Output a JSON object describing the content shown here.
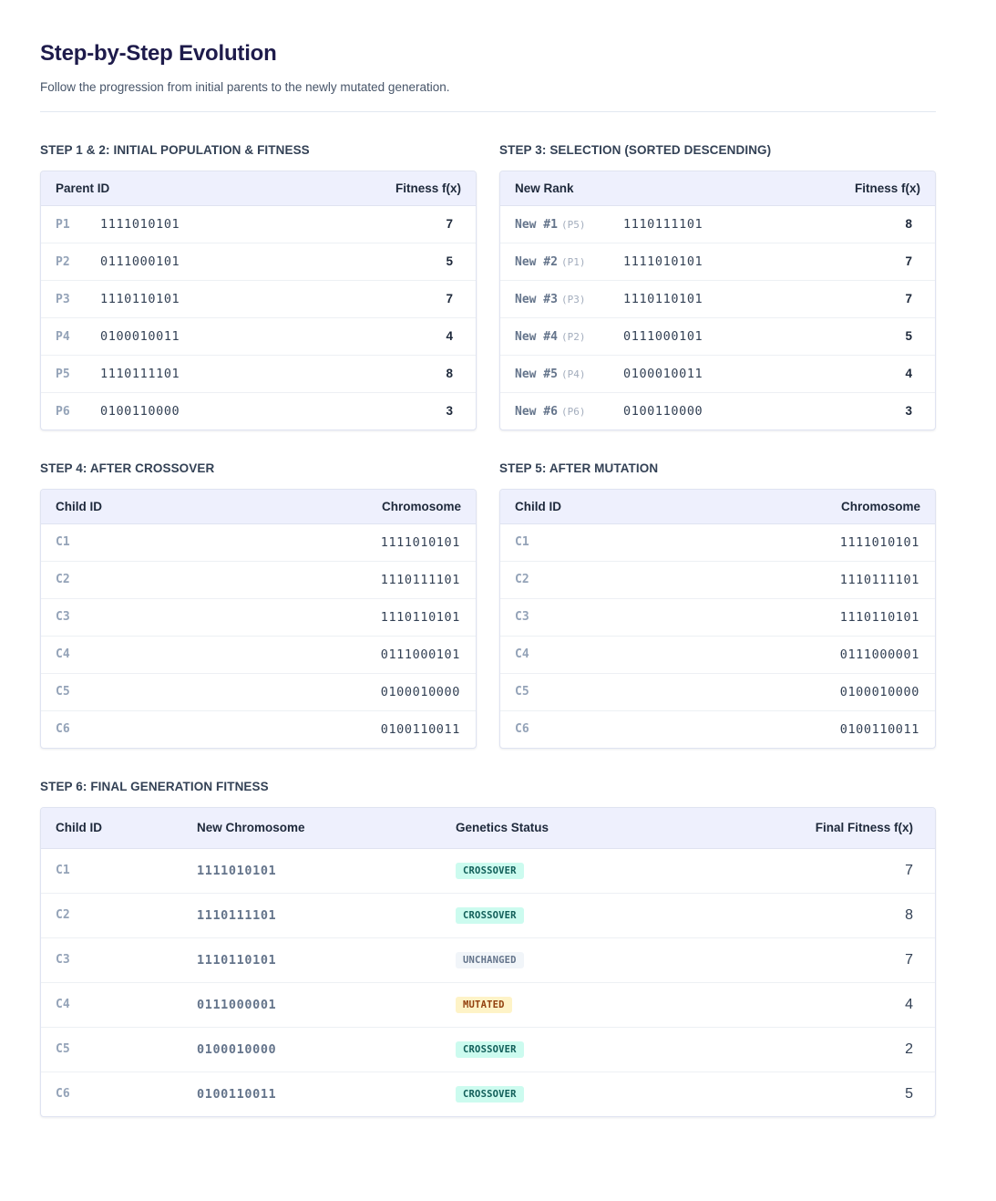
{
  "header": {
    "title": "Step-by-Step Evolution",
    "subtitle": "Follow the progression from initial parents to the newly mutated generation."
  },
  "step12": {
    "title": "STEP 1 & 2: INITIAL POPULATION & FITNESS",
    "columns": [
      "Parent ID",
      "Fitness f(x)"
    ],
    "rows": [
      {
        "id": "P1",
        "chromosome": "1111010101",
        "fitness": "7"
      },
      {
        "id": "P2",
        "chromosome": "0111000101",
        "fitness": "5"
      },
      {
        "id": "P3",
        "chromosome": "1110110101",
        "fitness": "7"
      },
      {
        "id": "P4",
        "chromosome": "0100010011",
        "fitness": "4"
      },
      {
        "id": "P5",
        "chromosome": "1110111101",
        "fitness": "8"
      },
      {
        "id": "P6",
        "chromosome": "0100110000",
        "fitness": "3"
      }
    ]
  },
  "step3": {
    "title": "STEP 3: SELECTION (SORTED DESCENDING)",
    "columns": [
      "New Rank",
      "Fitness f(x)"
    ],
    "rows": [
      {
        "rank": "New #1",
        "origin": "(P5)",
        "chromosome": "1110111101",
        "fitness": "8"
      },
      {
        "rank": "New #2",
        "origin": "(P1)",
        "chromosome": "1111010101",
        "fitness": "7"
      },
      {
        "rank": "New #3",
        "origin": "(P3)",
        "chromosome": "1110110101",
        "fitness": "7"
      },
      {
        "rank": "New #4",
        "origin": "(P2)",
        "chromosome": "0111000101",
        "fitness": "5"
      },
      {
        "rank": "New #5",
        "origin": "(P4)",
        "chromosome": "0100010011",
        "fitness": "4"
      },
      {
        "rank": "New #6",
        "origin": "(P6)",
        "chromosome": "0100110000",
        "fitness": "3"
      }
    ]
  },
  "step4": {
    "title": "STEP 4: AFTER CROSSOVER",
    "columns": [
      "Child ID",
      "Chromosome"
    ],
    "rows": [
      {
        "id": "C1",
        "chromosome": "1111010101"
      },
      {
        "id": "C2",
        "chromosome": "1110111101"
      },
      {
        "id": "C3",
        "chromosome": "1110110101"
      },
      {
        "id": "C4",
        "chromosome": "0111000101"
      },
      {
        "id": "C5",
        "chromosome": "0100010000"
      },
      {
        "id": "C6",
        "chromosome": "0100110011"
      }
    ]
  },
  "step5": {
    "title": "STEP 5: AFTER MUTATION",
    "columns": [
      "Child ID",
      "Chromosome"
    ],
    "rows": [
      {
        "id": "C1",
        "chromosome": "1111010101"
      },
      {
        "id": "C2",
        "chromosome": "1110111101"
      },
      {
        "id": "C3",
        "chromosome": "1110110101"
      },
      {
        "id": "C4",
        "chromosome": "0111000001"
      },
      {
        "id": "C5",
        "chromosome": "0100010000"
      },
      {
        "id": "C6",
        "chromosome": "0100110011"
      }
    ]
  },
  "step6": {
    "title": "STEP 6: FINAL GENERATION FITNESS",
    "columns": [
      "Child ID",
      "New Chromosome",
      "Genetics Status",
      "Final Fitness f(x)"
    ],
    "rows": [
      {
        "id": "C1",
        "chromosome": "1111010101",
        "status": "CROSSOVER",
        "fitness": "7"
      },
      {
        "id": "C2",
        "chromosome": "1110111101",
        "status": "CROSSOVER",
        "fitness": "8"
      },
      {
        "id": "C3",
        "chromosome": "1110110101",
        "status": "UNCHANGED",
        "fitness": "7"
      },
      {
        "id": "C4",
        "chromosome": "0111000001",
        "status": "MUTATED",
        "fitness": "4"
      },
      {
        "id": "C5",
        "chromosome": "0100010000",
        "status": "CROSSOVER",
        "fitness": "2"
      },
      {
        "id": "C6",
        "chromosome": "0100110011",
        "status": "CROSSOVER",
        "fitness": "5"
      }
    ],
    "status_colors": {
      "CROSSOVER": "#ccfbef",
      "UNCHANGED": "#f1f5f9",
      "MUTATED": "#fef3c7"
    }
  }
}
